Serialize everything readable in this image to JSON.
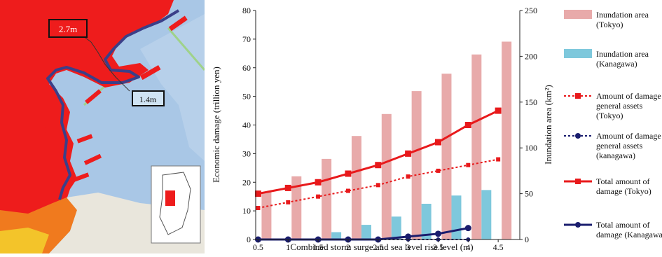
{
  "map": {
    "labels": [
      {
        "text": "2.7m"
      },
      {
        "text": "1.4m"
      }
    ],
    "colors": {
      "water": "#a9c7e6",
      "flood_high": "#ee1c1c",
      "flood_mid": "#f07a1e",
      "flood_low": "#f3c42a",
      "land": "#e9e6dc",
      "boundary": "#3b3f88"
    }
  },
  "chart_data": {
    "type": "bar",
    "categories": [
      "0.5",
      "1",
      "1.5",
      "2",
      "2.5",
      "3",
      "3.5",
      "4",
      "4.5"
    ],
    "xlabel": "Combined storm surge and sea level rise level (m)",
    "ylabel": "Economic damage (trillion yen)",
    "y2label": "Inundation area (km²)",
    "ylim": [
      0,
      80
    ],
    "y2lim": [
      0,
      250
    ],
    "yticks": [
      "0",
      "10",
      "20",
      "30",
      "40",
      "50",
      "60",
      "70",
      "80"
    ],
    "y2ticks": [
      "0",
      "50",
      "100",
      "150",
      "200",
      "250"
    ],
    "grid": false,
    "legend_position": "right",
    "bars": [
      {
        "name": "Inundation area (Tokyo)",
        "axis": "right",
        "color": "#e8aaaa",
        "values": [
          52,
          69,
          88,
          113,
          137,
          162,
          181,
          202,
          216
        ]
      },
      {
        "name": "Inundation area (Kanagawa)",
        "axis": "right",
        "color": "#7ec8dc",
        "values": [
          0,
          1,
          8,
          16,
          25,
          39,
          48,
          54,
          null
        ]
      }
    ],
    "lines": [
      {
        "name": "Amount of damage for general assets (Tokyo)",
        "axis": "left",
        "color": "#e8191b",
        "dash": "dotted",
        "marker": "square",
        "values": [
          11,
          13,
          15,
          17,
          19,
          22,
          24,
          26,
          28
        ]
      },
      {
        "name": "Amount of damage for general assets (kanagawa)",
        "axis": "left",
        "color": "#1a1d6e",
        "dash": "dotted",
        "marker": "circle",
        "values": [
          0,
          0,
          0,
          0,
          0,
          0,
          0,
          0,
          null
        ]
      },
      {
        "name": "Total amount of damage (Tokyo)",
        "axis": "left",
        "color": "#e8191b",
        "dash": "solid",
        "marker": "square",
        "values": [
          16,
          18,
          20,
          23,
          26,
          30,
          34,
          40,
          45
        ]
      },
      {
        "name": "Total amount of damage (Kanagawa)",
        "axis": "left",
        "color": "#1a1d6e",
        "dash": "solid",
        "marker": "circle",
        "values": [
          0,
          0,
          0,
          0,
          0,
          1,
          2,
          4,
          null
        ]
      }
    ],
    "legend": [
      {
        "label": "Inundation area (Tokyo)"
      },
      {
        "label": "Inundation area (Kanagawa)"
      },
      {
        "label": "Amount of damage for general assets (Tokyo)"
      },
      {
        "label": "Amount of damage for general assets (kanagawa)"
      },
      {
        "label": "Total amount of damage (Tokyo)"
      },
      {
        "label": "Total amount of damage (Kanagawa)"
      }
    ]
  }
}
